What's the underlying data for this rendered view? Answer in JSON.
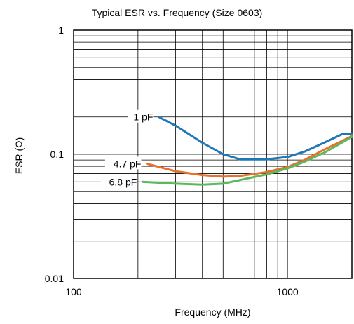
{
  "chart_data": {
    "type": "line",
    "title": "Typical ESR vs. Frequency (Size 0603)",
    "xlabel": "Frequency (MHz)",
    "ylabel": "ESR (Ω)",
    "xscale": "log",
    "yscale": "log",
    "xlim": [
      100,
      2000
    ],
    "ylim": [
      0.01,
      1
    ],
    "xticks": [
      100,
      1000
    ],
    "xtick_labels": [
      "100",
      "1000"
    ],
    "yticks": [
      0.01,
      0.1,
      1
    ],
    "ytick_labels": [
      "0.01",
      "0.1",
      "1"
    ],
    "grid": true,
    "series": [
      {
        "name": "1 pF",
        "color": "#1f77b4",
        "x": [
          250,
          300,
          400,
          500,
          600,
          800,
          1000,
          1200,
          1500,
          1800,
          2000
        ],
        "y": [
          0.2,
          0.17,
          0.124,
          0.1,
          0.091,
          0.091,
          0.095,
          0.105,
          0.125,
          0.145,
          0.147
        ]
      },
      {
        "name": "4.7 pF",
        "color": "#e8702a",
        "x": [
          220,
          300,
          400,
          500,
          600,
          800,
          1000,
          1200,
          1500,
          2000
        ],
        "y": [
          0.084,
          0.073,
          0.068,
          0.066,
          0.067,
          0.072,
          0.079,
          0.09,
          0.11,
          0.14
        ]
      },
      {
        "name": "6.8 pF",
        "color": "#5cb85c",
        "x": [
          210,
          300,
          400,
          500,
          600,
          800,
          1000,
          1200,
          1500,
          2000
        ],
        "y": [
          0.06,
          0.058,
          0.057,
          0.058,
          0.062,
          0.069,
          0.077,
          0.087,
          0.104,
          0.138
        ]
      }
    ]
  }
}
